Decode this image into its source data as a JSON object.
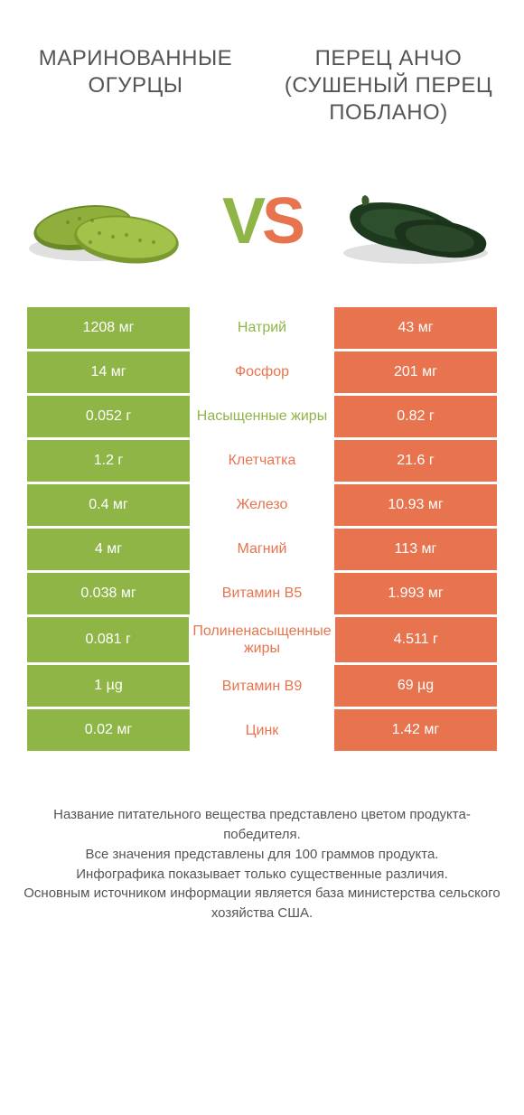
{
  "colors": {
    "left": "#8fb547",
    "right": "#e8744f",
    "background": "#ffffff",
    "text": "#555555"
  },
  "header": {
    "left_title": "МАРИНОВАННЫЕ ОГУРЦЫ",
    "right_title": "ПЕРЕЦ АНЧО (СУШЕНЫЙ ПЕРЕЦ ПОБЛАНО)"
  },
  "vs": {
    "v": "V",
    "s": "S"
  },
  "table": {
    "type": "comparison-table",
    "column_colors": [
      "#8fb547",
      "#ffffff",
      "#e8744f"
    ],
    "rows": [
      {
        "left": "1208 мг",
        "label": "Натрий",
        "winner": "left",
        "right": "43 мг"
      },
      {
        "left": "14 мг",
        "label": "Фосфор",
        "winner": "right",
        "right": "201 мг"
      },
      {
        "left": "0.052 г",
        "label": "Насыщенные жиры",
        "winner": "left",
        "right": "0.82 г"
      },
      {
        "left": "1.2 г",
        "label": "Клетчатка",
        "winner": "right",
        "right": "21.6 г"
      },
      {
        "left": "0.4 мг",
        "label": "Железо",
        "winner": "right",
        "right": "10.93 мг"
      },
      {
        "left": "4 мг",
        "label": "Магний",
        "winner": "right",
        "right": "113 мг"
      },
      {
        "left": "0.038 мг",
        "label": "Витамин B5",
        "winner": "right",
        "right": "1.993 мг"
      },
      {
        "left": "0.081 г",
        "label": "Полиненасыщенные жиры",
        "winner": "right",
        "right": "4.511 г"
      },
      {
        "left": "1 µg",
        "label": "Витамин B9",
        "winner": "right",
        "right": "69 µg"
      },
      {
        "left": "0.02 мг",
        "label": "Цинк",
        "winner": "right",
        "right": "1.42 мг"
      }
    ]
  },
  "footer": {
    "line1": "Название питательного вещества представлено цветом продукта-победителя.",
    "line2": "Все значения представлены для 100 граммов продукта.",
    "line3": "Инфографика показывает только существенные различия.",
    "line4": "Основным источником информации является база министерства сельского хозяйства США."
  }
}
